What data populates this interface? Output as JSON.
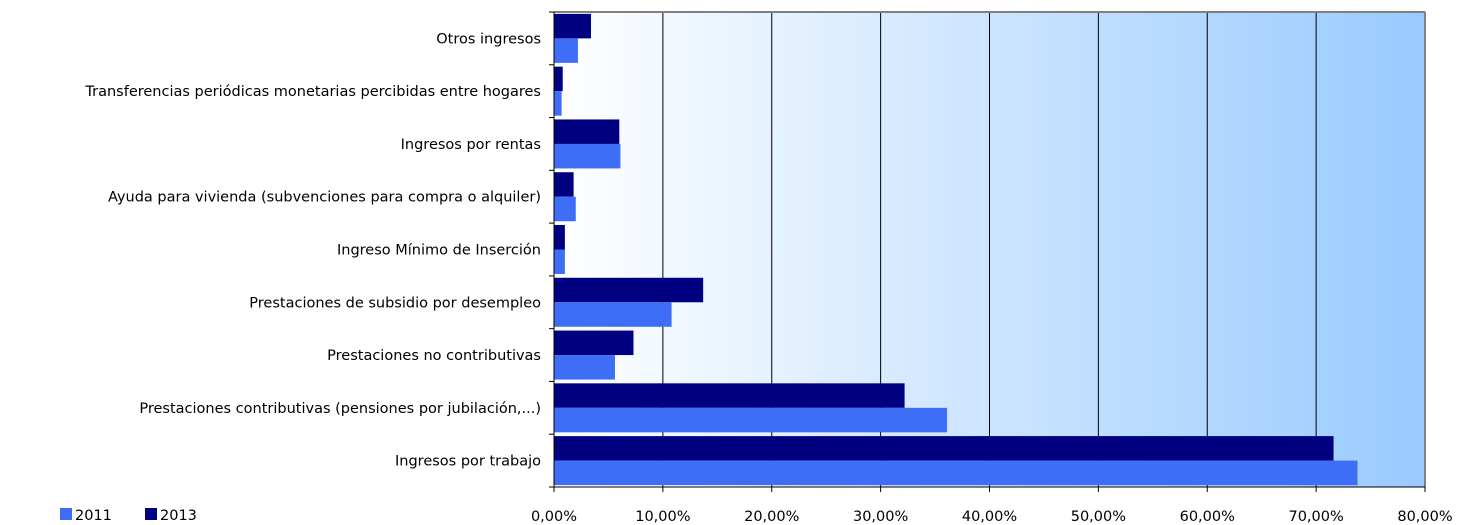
{
  "chart_data": {
    "type": "bar",
    "orientation": "horizontal",
    "categories": [
      "Otros ingresos",
      "Transferencias periódicas monetarias percibidas entre hogares",
      "Ingresos por rentas",
      "Ayuda para vivienda (subvenciones para compra o alquiler)",
      "Ingreso Mínimo de Inserción",
      "Prestaciones de subsidio por desempleo",
      "Prestaciones no contributivas",
      "Prestaciones contributivas (pensiones por jubilación,...)",
      "Ingresos por trabajo"
    ],
    "series": [
      {
        "name": "2011",
        "color": "#3d6ef5",
        "values": [
          2.2,
          0.7,
          6.1,
          2.0,
          1.0,
          10.8,
          5.6,
          36.1,
          73.8
        ]
      },
      {
        "name": "2013",
        "color": "#000080",
        "values": [
          3.4,
          0.8,
          6.0,
          1.8,
          1.0,
          13.7,
          7.3,
          32.2,
          71.6
        ]
      }
    ],
    "x_ticks": [
      "0,00%",
      "10,00%",
      "20,00%",
      "30,00%",
      "40,00%",
      "50,00%",
      "60,00%",
      "70,00%",
      "80,00%"
    ],
    "xlim": [
      0,
      80
    ],
    "title": "",
    "xlabel": "",
    "ylabel": "",
    "grid": true,
    "legend": "bottom-left",
    "background_gradient": [
      "#ffffff",
      "#99caff"
    ]
  }
}
